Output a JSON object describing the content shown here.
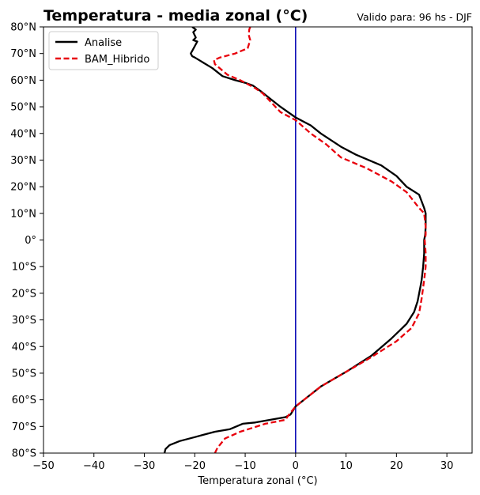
{
  "chart_data": {
    "type": "line",
    "title": "Temperatura - media zonal (°C)",
    "subtitle": "Valido para: 96 hs - DJF",
    "xlabel": "Temperatura zonal (°C)",
    "ylabel": "",
    "xlim": [
      -50,
      35
    ],
    "ylim": [
      -80,
      80
    ],
    "x_ticks": [
      -50,
      -40,
      -30,
      -20,
      -10,
      0,
      10,
      20,
      30
    ],
    "x_tick_labels": [
      "−50",
      "−40",
      "−30",
      "−20",
      "−10",
      "0",
      "10",
      "20",
      "30"
    ],
    "y_ticks": [
      -80,
      -70,
      -60,
      -50,
      -40,
      -30,
      -20,
      -10,
      0,
      10,
      20,
      30,
      40,
      50,
      60,
      70,
      80
    ],
    "y_tick_labels": [
      "80°S",
      "70°S",
      "60°S",
      "50°S",
      "40°S",
      "30°S",
      "20°S",
      "10°S",
      "0°",
      "10°N",
      "20°N",
      "30°N",
      "40°N",
      "50°N",
      "60°N",
      "70°N",
      "80°N"
    ],
    "grid": false,
    "legend_position": "top-left",
    "reference_line": {
      "x": 0,
      "color": "#0000b3"
    },
    "series": [
      {
        "name": "Analise",
        "color": "#000000",
        "style": "solid",
        "x": [
          -26,
          -25.8,
          -25,
          -23,
          -20,
          -16,
          -13,
          -10.5,
          -8,
          -5,
          -2,
          -1,
          0,
          2,
          5,
          10,
          15,
          19,
          22,
          23.5,
          24.2,
          24.8,
          25,
          25.3,
          25.5,
          25.5,
          25.7,
          25.8,
          25.8,
          25.5,
          24.5,
          22,
          20,
          17,
          12,
          9,
          5,
          3,
          0,
          -3,
          -5,
          -7,
          -8.5,
          -10,
          -12,
          -14.5,
          -16.5,
          -20,
          -20.5,
          -20.8,
          -20.5,
          -19.5,
          -20.3,
          -19.8,
          -20.3,
          -19.8,
          -20.5
        ],
        "y": [
          -80,
          -78.5,
          -77,
          -75.5,
          -74,
          -72,
          -71,
          -69,
          -68.5,
          -67.5,
          -66.5,
          -65.5,
          -62.5,
          -59.5,
          -55,
          -49.5,
          -43.5,
          -37,
          -31.5,
          -27,
          -23,
          -17,
          -15,
          -10,
          -5,
          0,
          2,
          5,
          10,
          12,
          17,
          20,
          24,
          28,
          32,
          35,
          40,
          43,
          46,
          50,
          53,
          56,
          58,
          59,
          60,
          61.5,
          64.5,
          68.5,
          69,
          70,
          71,
          74.5,
          75,
          76,
          78,
          79,
          80
        ]
      },
      {
        "name": "BAM_Hibrido",
        "color": "#e8000b",
        "style": "dashed",
        "x": [
          -16,
          -15.5,
          -14,
          -11,
          -6,
          -2,
          -1.5,
          0,
          2,
          5,
          10,
          15,
          20,
          23,
          24.5,
          25,
          25.5,
          25.8,
          25.8,
          25.6,
          25.8,
          25.8,
          25.5,
          24.5,
          22,
          19,
          14,
          9,
          6,
          3,
          0,
          -3,
          -5,
          -6.5,
          -8,
          -9.5,
          -11,
          -13.5,
          -16,
          -16.2,
          -15,
          -12,
          -9.5,
          -9,
          -9.3,
          -9.2,
          -9
        ],
        "y": [
          -80,
          -78,
          -74.5,
          -72,
          -69,
          -67.5,
          -66,
          -62.5,
          -59.5,
          -55,
          -49.5,
          -44,
          -38,
          -33,
          -27.5,
          -22,
          -15,
          -10,
          -5,
          0,
          2,
          5,
          10,
          12,
          18,
          22,
          27,
          31,
          36,
          40,
          45,
          48,
          52,
          55,
          57,
          58.5,
          60,
          62,
          66,
          67.5,
          68.5,
          70,
          72,
          75,
          77,
          79,
          80
        ]
      }
    ]
  }
}
